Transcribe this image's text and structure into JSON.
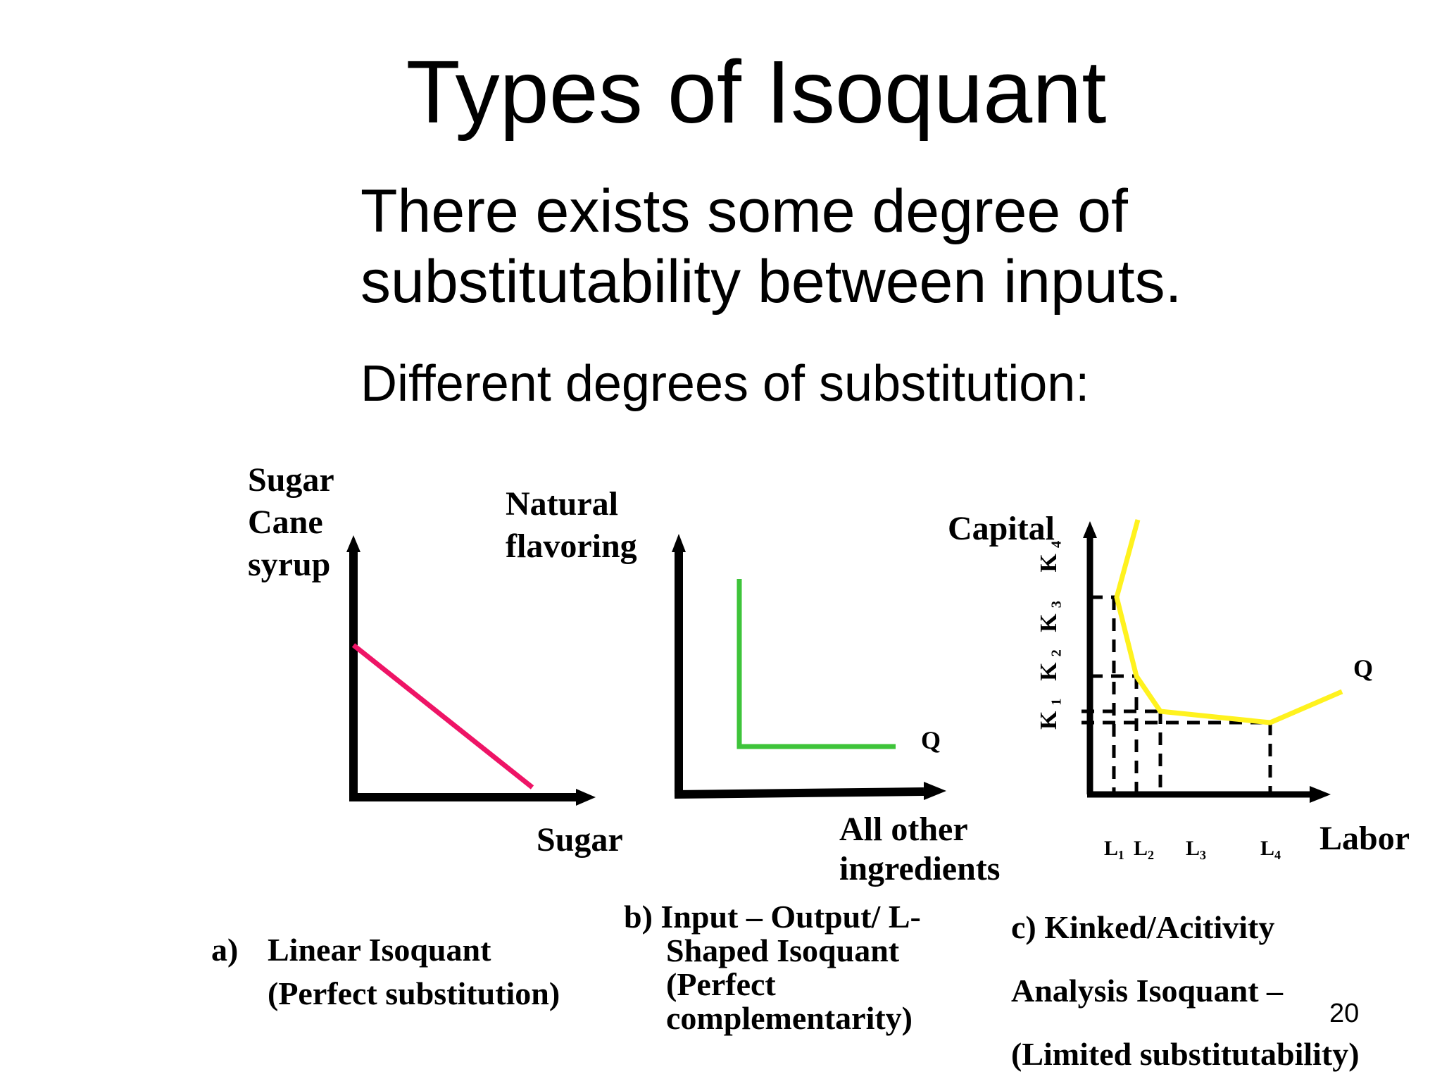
{
  "title": "Types of Isoquant",
  "intro": {
    "line1": "There exists some degree of",
    "line2": "substitutability between inputs.",
    "line3": "Different degrees of substitution:"
  },
  "panel_a": {
    "y_label": [
      "Sugar",
      "Cane",
      "syrup"
    ],
    "x_label": "Sugar",
    "caption_marker": "a)",
    "caption": [
      "Linear Isoquant",
      "(Perfect substitution)"
    ],
    "curve_color": "#ee1466"
  },
  "panel_b": {
    "y_label": [
      "Natural",
      "flavoring"
    ],
    "x_label": [
      "All other",
      "ingredients"
    ],
    "curve_label": "Q",
    "caption": [
      "b) Input – Output/ L-",
      "Shaped Isoquant",
      "(Perfect",
      "complementarity)"
    ],
    "curve_color": "#3ec43a"
  },
  "panel_c": {
    "y_label": "Capital",
    "x_label": "Labor",
    "curve_label": "Q",
    "k_ticks": [
      "K₁",
      "K₂",
      "K₃",
      "K₄"
    ],
    "l_ticks": [
      "L₁",
      "L₂",
      "L₃",
      "L₄"
    ],
    "caption": [
      "c) Kinked/Acitivity",
      "Analysis  Isoquant –",
      "(Limited substitutability)"
    ],
    "curve_color": "#fff21e"
  },
  "page_number": "20"
}
